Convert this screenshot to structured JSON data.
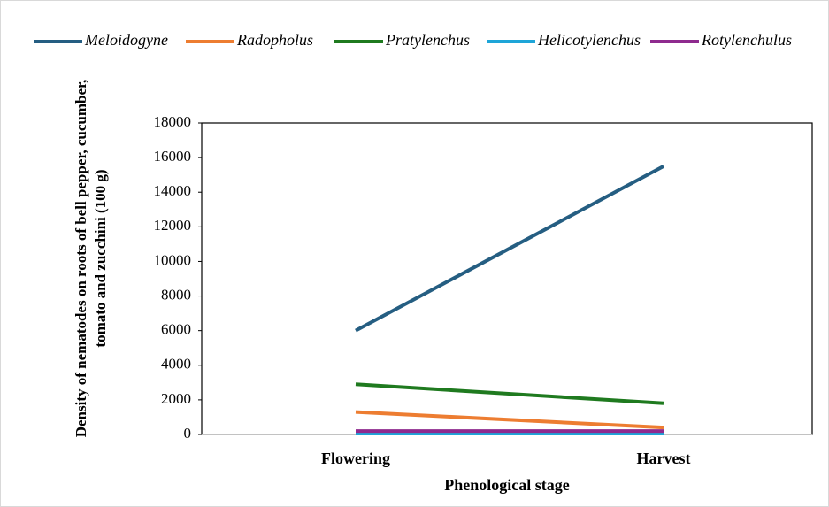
{
  "chart_data": {
    "type": "line",
    "x_label": "Phenological stage",
    "y_label": "Density of nematodes on roots of bell pepper, cucumber, tomato and zucchini (100 g)",
    "categories": [
      "Flowering",
      "Harvest"
    ],
    "series": [
      {
        "name": "Meloidogyne",
        "color": "#255e82",
        "values": [
          6000,
          15500
        ]
      },
      {
        "name": "Radopholus",
        "color": "#ed7d31",
        "values": [
          1300,
          400
        ]
      },
      {
        "name": "Pratylenchus",
        "color": "#1f7a1f",
        "values": [
          2900,
          1800
        ]
      },
      {
        "name": "Helicotylenchus",
        "color": "#1ea5d8",
        "values": [
          50,
          50
        ]
      },
      {
        "name": "Rotylenchulus",
        "color": "#8e2a8e",
        "values": [
          200,
          200
        ]
      }
    ],
    "ylim": [
      0,
      18000
    ],
    "yticks": [
      0,
      2000,
      4000,
      6000,
      8000,
      10000,
      12000,
      14000,
      16000,
      18000
    ],
    "legend": "top"
  }
}
